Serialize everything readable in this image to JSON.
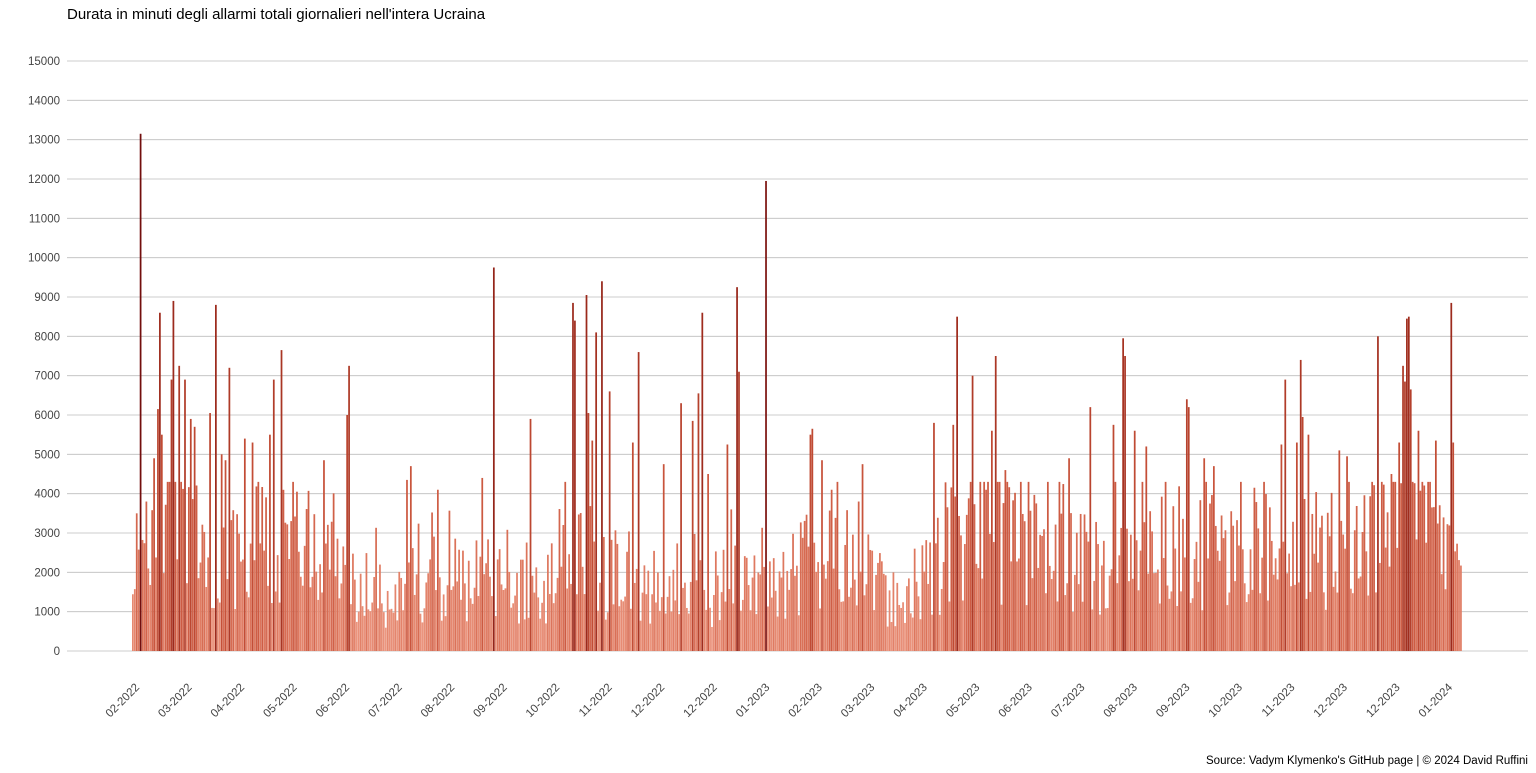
{
  "chart_data": {
    "type": "bar",
    "title": "Durata in minuti degli allarmi totali giornalieri nell'intera Ucraina",
    "source": "Source: Vadym Klymenko's GitHub page | © 2024 David Ruffini",
    "xlabel": "",
    "ylabel": "",
    "ylim": [
      0,
      15000
    ],
    "yticks": [
      0,
      1000,
      2000,
      3000,
      4000,
      5000,
      6000,
      7000,
      8000,
      9000,
      10000,
      11000,
      12000,
      13000,
      14000,
      15000
    ],
    "x_start_date": "2022-02-24",
    "x_end_date": "2024-01-13",
    "xticks": [
      "02-2022",
      "03-2022",
      "04-2022",
      "05-2022",
      "06-2022",
      "07-2022",
      "08-2022",
      "09-2022",
      "10-2022",
      "11-2022",
      "12-2022",
      "12-2022",
      "01-2023",
      "02-2023",
      "03-2023",
      "04-2023",
      "05-2023",
      "06-2023",
      "07-2023",
      "08-2023",
      "09-2023",
      "10-2023",
      "11-2023",
      "12-2023",
      "12-2023",
      "01-2024"
    ],
    "grid": true,
    "legend": "none",
    "colors": {
      "low": "#f0a08a",
      "mid": "#c8553a",
      "high": "#6e0c0c"
    },
    "baseline_profile": [
      {
        "date": "2022-02-24",
        "value": 1500
      },
      {
        "date": "2022-03-10",
        "value": 3600
      },
      {
        "date": "2022-03-25",
        "value": 3000
      },
      {
        "date": "2022-04-10",
        "value": 2200
      },
      {
        "date": "2022-04-25",
        "value": 2600
      },
      {
        "date": "2022-05-10",
        "value": 2800
      },
      {
        "date": "2022-05-25",
        "value": 2400
      },
      {
        "date": "2022-06-10",
        "value": 2000
      },
      {
        "date": "2022-06-25",
        "value": 1700
      },
      {
        "date": "2022-07-10",
        "value": 1300
      },
      {
        "date": "2022-07-25",
        "value": 1700
      },
      {
        "date": "2022-08-10",
        "value": 1800
      },
      {
        "date": "2022-08-25",
        "value": 1600
      },
      {
        "date": "2022-09-10",
        "value": 1500
      },
      {
        "date": "2022-09-25",
        "value": 1500
      },
      {
        "date": "2022-10-10",
        "value": 2400
      },
      {
        "date": "2022-10-25",
        "value": 2000
      },
      {
        "date": "2022-11-10",
        "value": 1500
      },
      {
        "date": "2022-11-25",
        "value": 1300
      },
      {
        "date": "2022-12-10",
        "value": 1500
      },
      {
        "date": "2022-12-25",
        "value": 1300
      },
      {
        "date": "2023-01-10",
        "value": 1300
      },
      {
        "date": "2023-01-25",
        "value": 1800
      },
      {
        "date": "2023-02-10",
        "value": 2300
      },
      {
        "date": "2023-02-25",
        "value": 2500
      },
      {
        "date": "2023-03-10",
        "value": 1900
      },
      {
        "date": "2023-03-25",
        "value": 1400
      },
      {
        "date": "2023-04-10",
        "value": 1500
      },
      {
        "date": "2023-04-25",
        "value": 2300
      },
      {
        "date": "2023-05-10",
        "value": 3000
      },
      {
        "date": "2023-05-25",
        "value": 2800
      },
      {
        "date": "2023-06-10",
        "value": 2500
      },
      {
        "date": "2023-06-25",
        "value": 2300
      },
      {
        "date": "2023-07-10",
        "value": 2300
      },
      {
        "date": "2023-07-25",
        "value": 2400
      },
      {
        "date": "2023-08-10",
        "value": 2700
      },
      {
        "date": "2023-08-25",
        "value": 2500
      },
      {
        "date": "2023-09-10",
        "value": 2300
      },
      {
        "date": "2023-09-25",
        "value": 2500
      },
      {
        "date": "2023-10-10",
        "value": 2300
      },
      {
        "date": "2023-10-25",
        "value": 2100
      },
      {
        "date": "2023-11-10",
        "value": 2600
      },
      {
        "date": "2023-11-25",
        "value": 2800
      },
      {
        "date": "2023-12-10",
        "value": 3000
      },
      {
        "date": "2023-12-25",
        "value": 3300
      },
      {
        "date": "2024-01-13",
        "value": 2200
      }
    ],
    "peaks": [
      {
        "date": "2022-02-26",
        "value": 3500
      },
      {
        "date": "2022-02-28",
        "value": 13150
      },
      {
        "date": "2022-03-03",
        "value": 3800
      },
      {
        "date": "2022-03-07",
        "value": 4900
      },
      {
        "date": "2022-03-09",
        "value": 6150
      },
      {
        "date": "2022-03-10",
        "value": 8600
      },
      {
        "date": "2022-03-11",
        "value": 5500
      },
      {
        "date": "2022-03-16",
        "value": 6900
      },
      {
        "date": "2022-03-17",
        "value": 8900
      },
      {
        "date": "2022-03-20",
        "value": 7250
      },
      {
        "date": "2022-03-23",
        "value": 6900
      },
      {
        "date": "2022-03-26",
        "value": 5900
      },
      {
        "date": "2022-03-28",
        "value": 5700
      },
      {
        "date": "2022-04-05",
        "value": 6050
      },
      {
        "date": "2022-04-08",
        "value": 8800
      },
      {
        "date": "2022-04-11",
        "value": 5000
      },
      {
        "date": "2022-04-13",
        "value": 4850
      },
      {
        "date": "2022-04-15",
        "value": 7200
      },
      {
        "date": "2022-04-23",
        "value": 5400
      },
      {
        "date": "2022-04-27",
        "value": 5300
      },
      {
        "date": "2022-05-06",
        "value": 5500
      },
      {
        "date": "2022-05-08",
        "value": 6900
      },
      {
        "date": "2022-05-12",
        "value": 7650
      },
      {
        "date": "2022-05-20",
        "value": 4050
      },
      {
        "date": "2022-06-03",
        "value": 4850
      },
      {
        "date": "2022-06-15",
        "value": 6000
      },
      {
        "date": "2022-06-16",
        "value": 7250
      },
      {
        "date": "2022-07-16",
        "value": 4350
      },
      {
        "date": "2022-07-18",
        "value": 4700
      },
      {
        "date": "2022-08-01",
        "value": 4100
      },
      {
        "date": "2022-08-24",
        "value": 4400
      },
      {
        "date": "2022-08-30",
        "value": 9750
      },
      {
        "date": "2022-09-18",
        "value": 5900
      },
      {
        "date": "2022-10-10",
        "value": 8850
      },
      {
        "date": "2022-10-11",
        "value": 8400
      },
      {
        "date": "2022-10-17",
        "value": 9050
      },
      {
        "date": "2022-10-18",
        "value": 6050
      },
      {
        "date": "2022-10-20",
        "value": 5350
      },
      {
        "date": "2022-10-22",
        "value": 8100
      },
      {
        "date": "2022-10-25",
        "value": 9400
      },
      {
        "date": "2022-10-29",
        "value": 6600
      },
      {
        "date": "2022-11-10",
        "value": 5300
      },
      {
        "date": "2022-11-13",
        "value": 7600
      },
      {
        "date": "2022-11-26",
        "value": 4750
      },
      {
        "date": "2022-12-05",
        "value": 6300
      },
      {
        "date": "2022-12-11",
        "value": 5850
      },
      {
        "date": "2022-12-14",
        "value": 6550
      },
      {
        "date": "2022-12-16",
        "value": 8600
      },
      {
        "date": "2022-12-19",
        "value": 4500
      },
      {
        "date": "2022-12-29",
        "value": 5250
      },
      {
        "date": "2022-12-31",
        "value": 3600
      },
      {
        "date": "2023-01-03",
        "value": 9250
      },
      {
        "date": "2023-01-04",
        "value": 7100
      },
      {
        "date": "2023-01-18",
        "value": 11950
      },
      {
        "date": "2023-02-10",
        "value": 5500
      },
      {
        "date": "2023-02-11",
        "value": 5650
      },
      {
        "date": "2023-02-16",
        "value": 4850
      },
      {
        "date": "2023-02-21",
        "value": 4100
      },
      {
        "date": "2023-03-07",
        "value": 3800
      },
      {
        "date": "2023-03-09",
        "value": 4750
      },
      {
        "date": "2023-04-15",
        "value": 5800
      },
      {
        "date": "2023-04-25",
        "value": 5750
      },
      {
        "date": "2023-04-27",
        "value": 8500
      },
      {
        "date": "2023-05-05",
        "value": 7000
      },
      {
        "date": "2023-05-15",
        "value": 5600
      },
      {
        "date": "2023-05-17",
        "value": 7500
      },
      {
        "date": "2023-05-22",
        "value": 4600
      },
      {
        "date": "2023-06-24",
        "value": 4900
      },
      {
        "date": "2023-07-05",
        "value": 6200
      },
      {
        "date": "2023-07-17",
        "value": 5750
      },
      {
        "date": "2023-07-22",
        "value": 7950
      },
      {
        "date": "2023-07-23",
        "value": 7500
      },
      {
        "date": "2023-07-28",
        "value": 5600
      },
      {
        "date": "2023-08-03",
        "value": 5200
      },
      {
        "date": "2023-08-24",
        "value": 6400
      },
      {
        "date": "2023-08-25",
        "value": 6200
      },
      {
        "date": "2023-09-02",
        "value": 4900
      },
      {
        "date": "2023-09-07",
        "value": 4700
      },
      {
        "date": "2023-10-12",
        "value": 5250
      },
      {
        "date": "2023-10-14",
        "value": 6900
      },
      {
        "date": "2023-10-20",
        "value": 5300
      },
      {
        "date": "2023-10-22",
        "value": 7400
      },
      {
        "date": "2023-10-23",
        "value": 5950
      },
      {
        "date": "2023-10-26",
        "value": 5500
      },
      {
        "date": "2023-11-11",
        "value": 5100
      },
      {
        "date": "2023-11-15",
        "value": 4950
      },
      {
        "date": "2023-12-01",
        "value": 8000
      },
      {
        "date": "2023-12-08",
        "value": 4500
      },
      {
        "date": "2023-12-12",
        "value": 5300
      },
      {
        "date": "2023-12-14",
        "value": 7250
      },
      {
        "date": "2023-12-15",
        "value": 6850
      },
      {
        "date": "2023-12-16",
        "value": 8450
      },
      {
        "date": "2023-12-17",
        "value": 8500
      },
      {
        "date": "2023-12-18",
        "value": 6650
      },
      {
        "date": "2023-12-22",
        "value": 5600
      },
      {
        "date": "2023-12-31",
        "value": 5350
      },
      {
        "date": "2024-01-08",
        "value": 8850
      },
      {
        "date": "2024-01-09",
        "value": 5300
      }
    ]
  }
}
